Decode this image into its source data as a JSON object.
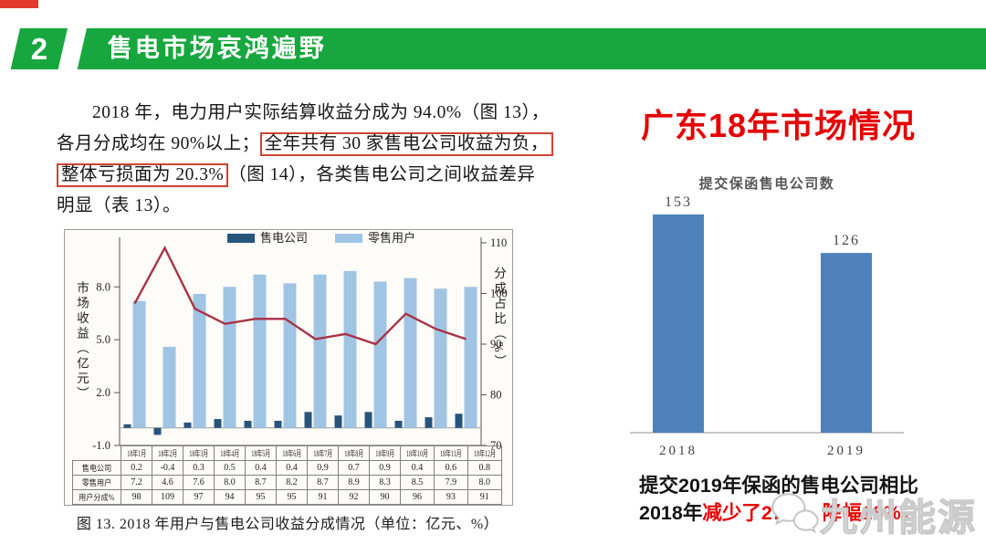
{
  "colors": {
    "banner_green": "#17a73e",
    "corner_red": "#e23b2e",
    "accent_red": "#e60000",
    "highlight_box_red": "#cf4334",
    "watermark_gray": "#c9c9c9"
  },
  "header": {
    "number": "2",
    "title": "售电市场哀鸿遍野"
  },
  "article": {
    "line1": "2018 年，电力用户实际结算收益分成为 94.0%（图 13），",
    "line2_pre": "各月分成均在 90%以上；",
    "line2_boxed": "全年共有 30 家售电公司收益为负，",
    "line3_boxed": "整体亏损面为 20.3%",
    "line3_post": "（图 14），各类售电公司之间收益差异",
    "line4": "明显（表 13）。",
    "caption": "图  13. 2018 年用户与售电公司收益分成情况（单位：亿元、%）"
  },
  "chart_data": [
    {
      "type": "bar+line",
      "title": "2018年用户与售电公司收益分成情况",
      "categories": [
        "18年1月",
        "18年2月",
        "18年3月",
        "18年4月",
        "18年5月",
        "18年6月",
        "18年7月",
        "18年8月",
        "18年9月",
        "18年10月",
        "18年11月",
        "18年12月"
      ],
      "series": [
        {
          "name": "售电公司",
          "type": "bar",
          "axis": "left",
          "color": "#27547d",
          "values": [
            0.2,
            -0.4,
            0.3,
            0.5,
            0.4,
            0.4,
            0.9,
            0.7,
            0.9,
            0.4,
            0.6,
            0.8
          ]
        },
        {
          "name": "零售用户",
          "type": "bar",
          "axis": "left",
          "color": "#a0c4e4",
          "values": [
            7.2,
            4.6,
            7.6,
            8.0,
            8.7,
            8.2,
            8.7,
            8.9,
            8.3,
            8.5,
            7.9,
            8.0
          ]
        },
        {
          "name": "用户分成%",
          "type": "line",
          "axis": "right",
          "color": "#a93245",
          "values": [
            98,
            109,
            97,
            94,
            95,
            95,
            91,
            92,
            90,
            96,
            93,
            91
          ]
        }
      ],
      "left_axis": {
        "label": "市场收益（亿元）",
        "min": -1,
        "max": 10.5,
        "ticks": [
          "8.0",
          "5.0",
          "2.0",
          "-1.0"
        ]
      },
      "right_axis": {
        "label": "分成占比（%）",
        "min": 70,
        "max": 110,
        "ticks": [
          "110",
          "100",
          "90",
          "80",
          "70"
        ]
      },
      "legend": [
        "售电公司",
        "零售用户"
      ],
      "legend_position": "top",
      "grid": false
    },
    {
      "type": "bar",
      "title": "提交保函售电公司数",
      "categories": [
        "2018",
        "2019"
      ],
      "values": [
        153,
        126
      ],
      "bar_color": "#4f81bd",
      "ylim": [
        0,
        160
      ],
      "data_labels": true
    }
  ],
  "right_panel": {
    "title": "广东18年市场情况",
    "note_line1": "提交2019年保函的售电公司相比",
    "note_line2_black": "2018年",
    "note_line2_red": "减少了27家，降幅18%。",
    "watermark_text": "九州能源"
  }
}
